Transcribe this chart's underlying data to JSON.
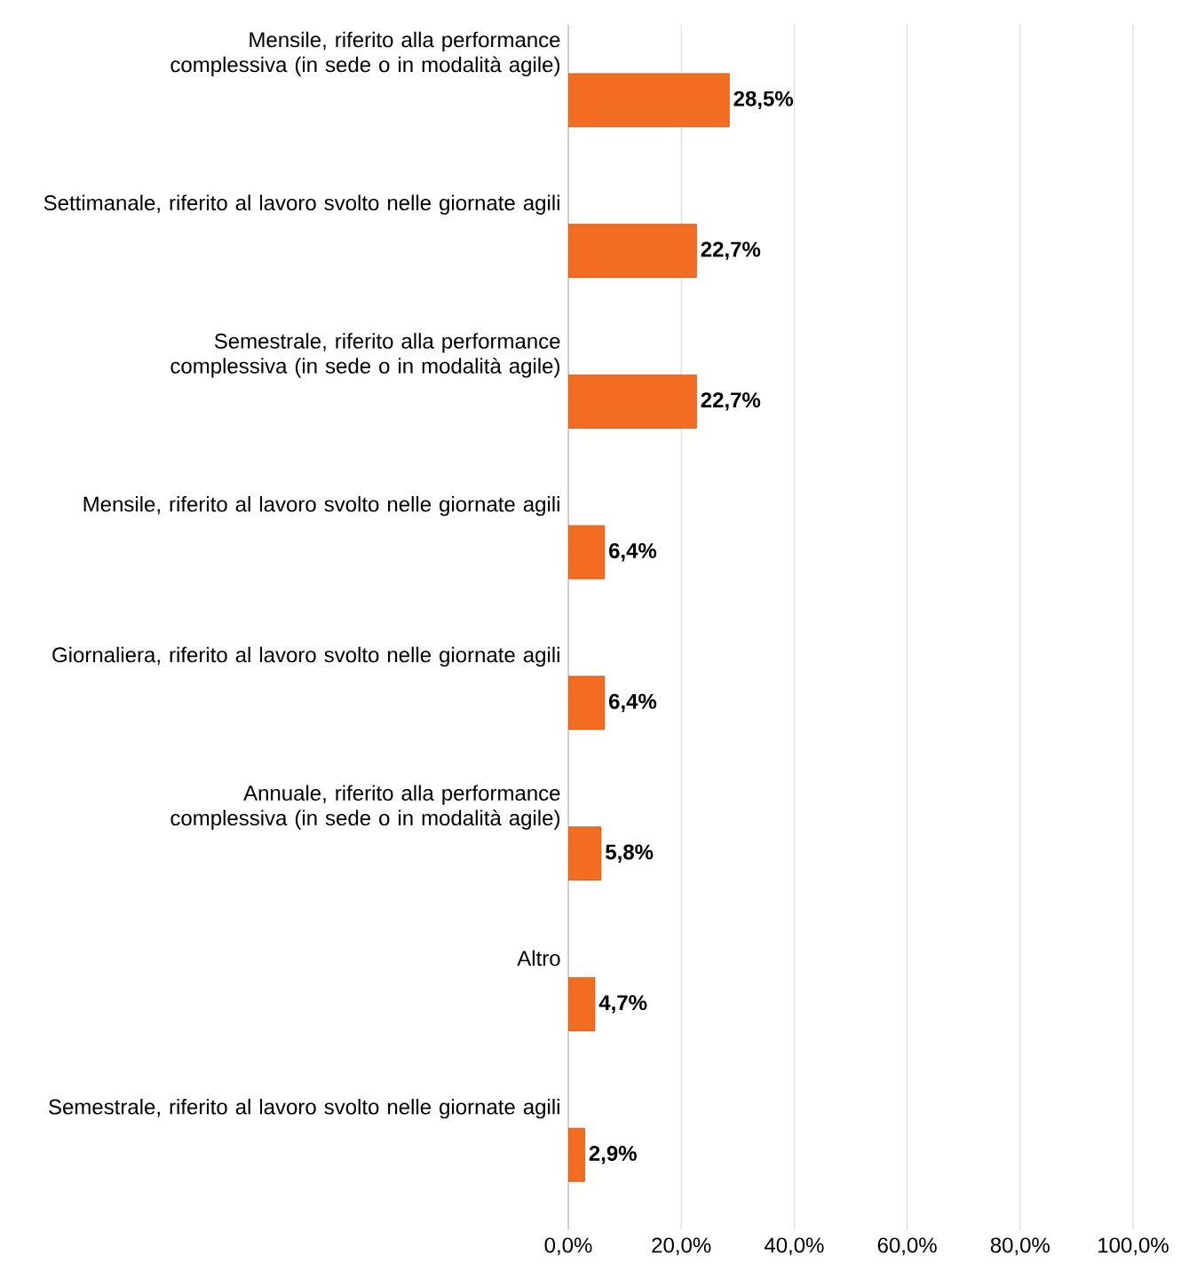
{
  "chart_data": {
    "type": "bar",
    "orientation": "horizontal",
    "categories": [
      "Mensile, riferito alla performance complessiva (in sede o in modalità agile)",
      "Settimanale, riferito al lavoro svolto nelle giornate agili",
      "Semestrale, riferito alla performance complessiva (in sede o in modalità agile)",
      "Mensile, riferito al lavoro svolto nelle giornate agili",
      "Giornaliera, riferito al lavoro svolto nelle giornate agili",
      "Annuale, riferito alla performance complessiva (in sede o in modalità agile)",
      "Altro",
      "Semestrale, riferito al lavoro svolto nelle giornate agili"
    ],
    "values": [
      28.5,
      22.7,
      22.7,
      6.4,
      6.4,
      5.8,
      4.7,
      2.9
    ],
    "value_labels": [
      "28,5%",
      "22,7%",
      "22,7%",
      "6,4%",
      "6,4%",
      "5,8%",
      "4,7%",
      "2,9%"
    ],
    "color": "#f26d21",
    "xlim": [
      0,
      100
    ],
    "xticks": [
      {
        "value": 0,
        "label": "0,0%"
      },
      {
        "value": 20,
        "label": "20,0%"
      },
      {
        "value": 40,
        "label": "40,0%"
      },
      {
        "value": 60,
        "label": "60,0%"
      },
      {
        "value": 80,
        "label": "80,0%"
      },
      {
        "value": 100,
        "label": "100,0%"
      }
    ],
    "grid": "x"
  }
}
